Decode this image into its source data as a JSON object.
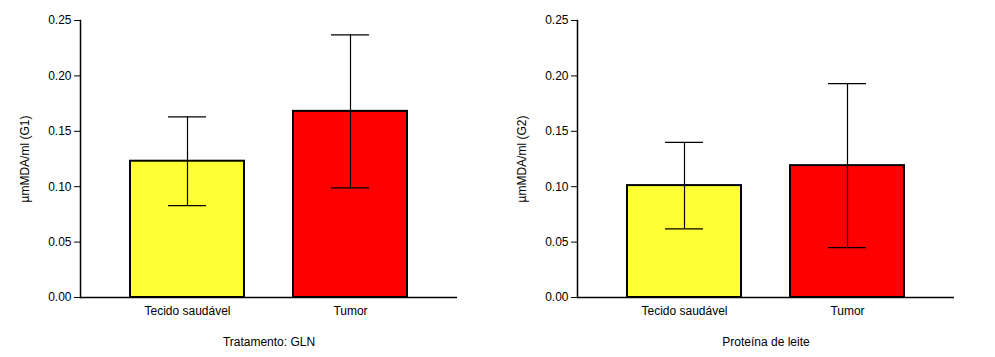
{
  "chart_data": [
    {
      "type": "bar",
      "x_label": "Tratamento: GLN",
      "y_label": "µmMDA/ml (G1)",
      "categories": [
        "Tecido saudável",
        "Tumor"
      ],
      "values": [
        0.123,
        0.168
      ],
      "errors": [
        0.04,
        0.069
      ],
      "colors": [
        "#ffff33",
        "#ff0000"
      ],
      "ylim": [
        0,
        0.25
      ],
      "yticks": [
        {
          "value": 0,
          "label": "0.00"
        },
        {
          "value": 0.05,
          "label": "0.05"
        },
        {
          "value": 0.1,
          "label": "0.10"
        },
        {
          "value": 0.15,
          "label": "0.15"
        },
        {
          "value": 0.2,
          "label": "0.20"
        },
        {
          "value": 0.25,
          "label": "0.25"
        }
      ],
      "grid": false
    },
    {
      "type": "bar",
      "x_label": "Proteína de leite",
      "y_label": "µmMDA/ml (G2)",
      "categories": [
        "Tecido saudável",
        "Tumor"
      ],
      "values": [
        0.101,
        0.119
      ],
      "errors": [
        0.039,
        0.074
      ],
      "colors": [
        "#ffff33",
        "#ff0000"
      ],
      "ylim": [
        0,
        0.25
      ],
      "yticks": [
        {
          "value": 0,
          "label": "0.00"
        },
        {
          "value": 0.05,
          "label": "0.05"
        },
        {
          "value": 0.1,
          "label": "0.10"
        },
        {
          "value": 0.15,
          "label": "0.15"
        },
        {
          "value": 0.2,
          "label": "0.20"
        },
        {
          "value": 0.25,
          "label": "0.25"
        }
      ],
      "grid": false
    }
  ]
}
